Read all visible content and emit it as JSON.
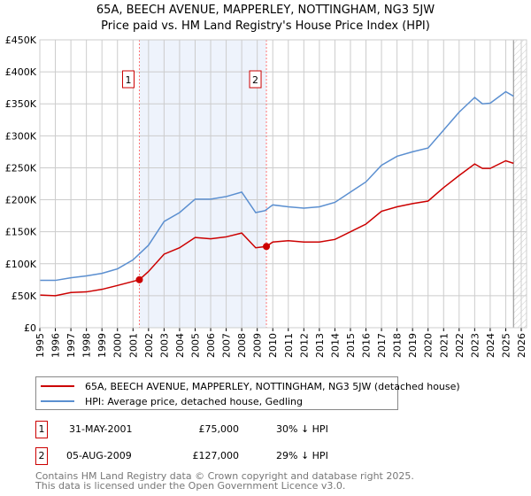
{
  "title": "65A, BEECH AVENUE, MAPPERLEY, NOTTINGHAM, NG3 5JW",
  "subtitle": "Price paid vs. HM Land Registry's House Price Index (HPI)",
  "chart_data": {
    "type": "line",
    "title": "65A, BEECH AVENUE, MAPPERLEY, NOTTINGHAM, NG3 5JW — Price paid vs. HM Land Registry's House Price Index (HPI)",
    "xlim": [
      1995,
      2026
    ],
    "ylim": [
      0,
      450000
    ],
    "x_ticks": [
      "1995",
      "1996",
      "1997",
      "1998",
      "1999",
      "2000",
      "2001",
      "2002",
      "2003",
      "2004",
      "2005",
      "2006",
      "2007",
      "2008",
      "2009",
      "2010",
      "2011",
      "2012",
      "2013",
      "2014",
      "2015",
      "2016",
      "2017",
      "2018",
      "2019",
      "2020",
      "2021",
      "2022",
      "2023",
      "2024",
      "2025",
      "2026"
    ],
    "y_ticks": [
      {
        "v": 0,
        "label": "£0"
      },
      {
        "v": 50000,
        "label": "£50K"
      },
      {
        "v": 100000,
        "label": "£100K"
      },
      {
        "v": 150000,
        "label": "£150K"
      },
      {
        "v": 200000,
        "label": "£200K"
      },
      {
        "v": 250000,
        "label": "£250K"
      },
      {
        "v": 300000,
        "label": "£300K"
      },
      {
        "v": 350000,
        "label": "£350K"
      },
      {
        "v": 400000,
        "label": "£400K"
      },
      {
        "v": 450000,
        "label": "£450K"
      }
    ],
    "grid": true,
    "series": [
      {
        "name": "65A, BEECH AVENUE, MAPPERLEY, NOTTINGHAM, NG3 5JW (detached house)",
        "color": "#cc0000",
        "x": [
          1995,
          1996,
          1997,
          1998,
          1999,
          2000,
          2001.41,
          2002,
          2003,
          2004,
          2005,
          2006,
          2007,
          2008,
          2008.9,
          2009.59,
          2010,
          2011,
          2012,
          2013,
          2014,
          2015,
          2016,
          2017,
          2018,
          2019,
          2020,
          2021,
          2022,
          2023,
          2023.5,
          2024,
          2025,
          2025.5
        ],
        "y": [
          51000,
          50000,
          55000,
          56000,
          60000,
          66000,
          75000,
          88000,
          115000,
          125000,
          141000,
          139000,
          142000,
          148000,
          125000,
          127000,
          134000,
          136000,
          134000,
          134000,
          138000,
          150000,
          162000,
          182000,
          189000,
          194000,
          198000,
          219000,
          238000,
          256000,
          249000,
          249000,
          261000,
          257000
        ]
      },
      {
        "name": "HPI: Average price, detached house, Gedling",
        "color": "#5b8fd0",
        "x": [
          1995,
          1996,
          1997,
          1998,
          1999,
          2000,
          2001,
          2002,
          2003,
          2004,
          2005,
          2006,
          2007,
          2008,
          2008.9,
          2009.5,
          2010,
          2011,
          2012,
          2013,
          2014,
          2015,
          2016,
          2017,
          2018,
          2019,
          2020,
          2021,
          2022,
          2023,
          2023.5,
          2024,
          2025,
          2025.5
        ],
        "y": [
          74000,
          74000,
          78000,
          81000,
          85000,
          92000,
          106000,
          129000,
          166000,
          180000,
          201000,
          201000,
          205000,
          212000,
          180000,
          183000,
          192000,
          189000,
          187000,
          189000,
          196000,
          212000,
          228000,
          254000,
          268000,
          275000,
          281000,
          309000,
          337000,
          360000,
          350000,
          351000,
          369000,
          362000
        ]
      }
    ],
    "sales": [
      {
        "label": "1",
        "x": 2001.41,
        "y": 75000
      },
      {
        "label": "2",
        "x": 2009.59,
        "y": 127000
      }
    ],
    "legend": "below"
  },
  "legend": {
    "items": [
      "65A, BEECH AVENUE, MAPPERLEY, NOTTINGHAM, NG3 5JW (detached house)",
      "HPI: Average price, detached house, Gedling"
    ]
  },
  "transactions": [
    {
      "num": "1",
      "date": "31-MAY-2001",
      "price": "£75,000",
      "hpi": "30% ↓ HPI"
    },
    {
      "num": "2",
      "date": "05-AUG-2009",
      "price": "£127,000",
      "hpi": "29% ↓ HPI"
    }
  ],
  "footer": [
    "Contains HM Land Registry data © Crown copyright and database right 2025.",
    "This data is licensed under the Open Government Licence v3.0."
  ]
}
